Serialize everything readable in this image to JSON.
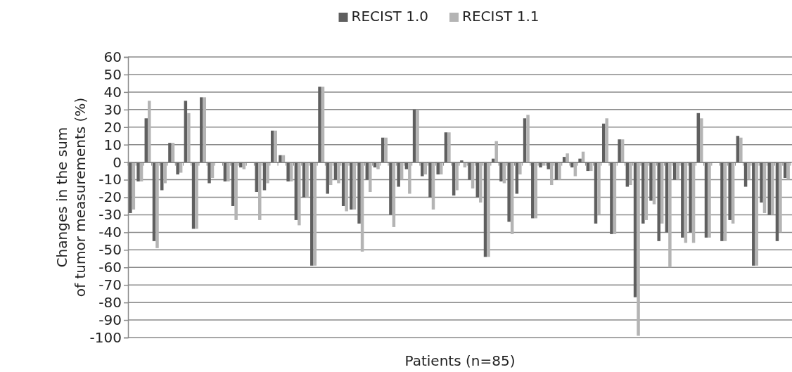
{
  "chart_data": {
    "type": "bar",
    "xlabel": "Patients (n=85)",
    "ylabel": "Changes in the sum\nof tumor measurements (%)",
    "categories": [
      null,
      null,
      null,
      null,
      null,
      null,
      null,
      null,
      null,
      null,
      null,
      null,
      null,
      null,
      null,
      null,
      null,
      null,
      null,
      null,
      null,
      null,
      null,
      null,
      null,
      null,
      null,
      null,
      null,
      null,
      null,
      null,
      null,
      null,
      null,
      null,
      null,
      null,
      null,
      null,
      null,
      null,
      null,
      null,
      null,
      null,
      null,
      null,
      null,
      null,
      null,
      null,
      null,
      null,
      null,
      null,
      null,
      null,
      null,
      null,
      null,
      null,
      null,
      null,
      null,
      null,
      null,
      null,
      null,
      null,
      null,
      null,
      null,
      null,
      null,
      null,
      null,
      null,
      null,
      null,
      null,
      null,
      null,
      null
    ],
    "series": [
      {
        "name": "RECIST 1.0",
        "color": "#5f5f5f",
        "values": [
          -29,
          -11,
          25,
          -45,
          -16,
          11,
          -7,
          35,
          -38,
          37,
          -12,
          0,
          -11,
          -25,
          -3,
          0,
          -17,
          -16,
          18,
          4,
          -11,
          -33,
          -20,
          -59,
          43,
          -18,
          -10,
          -25,
          -27,
          -35,
          -10,
          -3,
          14,
          -30,
          -14,
          -4,
          30,
          -8,
          -20,
          -7,
          17,
          -19,
          1,
          -10,
          -20,
          -54,
          2,
          -11,
          -34,
          -18,
          25,
          -32,
          -3,
          -4,
          -10,
          3,
          -3,
          2,
          -5,
          -35,
          22,
          -41,
          13,
          -14,
          -77,
          -35,
          -22,
          -45,
          -40,
          -10,
          -43,
          -40,
          28,
          -43,
          0,
          -45,
          -33,
          15,
          -14,
          -59,
          -23,
          -30,
          -45,
          -9
        ]
      },
      {
        "name": "RECIST 1.1",
        "color": "#b4b4b4",
        "values": [
          -27,
          -11,
          35,
          -49,
          -12,
          11,
          -6,
          28,
          -38,
          37,
          -9,
          0,
          -11,
          -33,
          -4,
          0,
          -33,
          -12,
          18,
          4,
          -11,
          -36,
          -20,
          -59,
          43,
          -13,
          -12,
          -28,
          -27,
          -51,
          -17,
          -4,
          14,
          -37,
          -10,
          -18,
          30,
          -7,
          -27,
          -7,
          17,
          -16,
          -3,
          -15,
          -23,
          -54,
          12,
          -12,
          -41,
          -7,
          27,
          -32,
          -2,
          -13,
          -10,
          5,
          -8,
          6,
          -5,
          -30,
          25,
          -41,
          13,
          -13,
          -99,
          -33,
          -24,
          -35,
          -60,
          -10,
          -46,
          -46,
          25,
          -43,
          0,
          -45,
          -35,
          14,
          -10,
          -59,
          -29,
          -30,
          -40,
          -10
        ]
      }
    ],
    "ylim": [
      -100,
      60
    ],
    "yticks": [
      -100,
      -90,
      -80,
      -70,
      -60,
      -50,
      -40,
      -30,
      -20,
      -10,
      0,
      10,
      20,
      30,
      40,
      50,
      60
    ],
    "grid": "y",
    "legend": "top"
  }
}
